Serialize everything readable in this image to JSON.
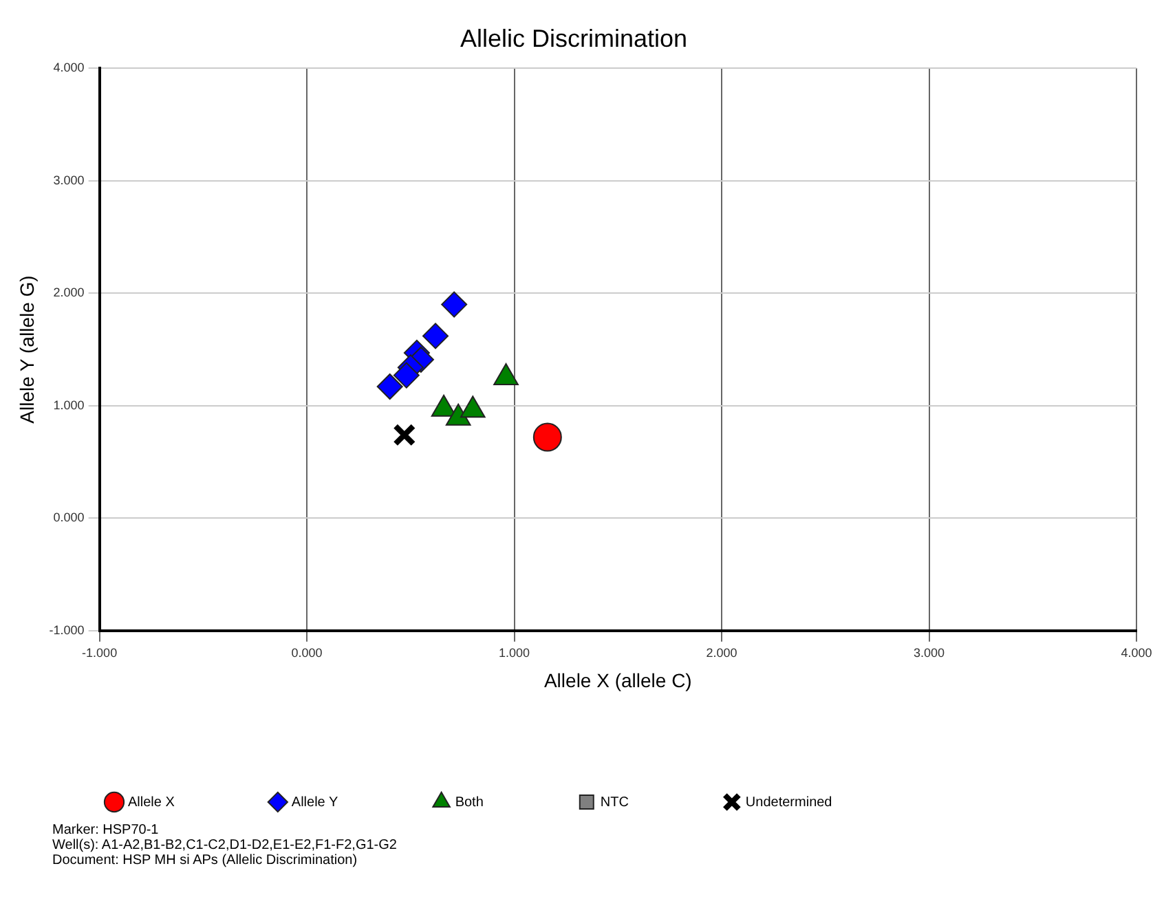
{
  "chart_data": {
    "type": "scatter",
    "title": "Allelic Discrimination",
    "xlabel": "Allele X (allele C)",
    "ylabel": "Allele Y (allele G)",
    "xlim": [
      -1,
      4
    ],
    "ylim": [
      -1,
      4
    ],
    "xticks": [
      {
        "value": -1,
        "label": "-1.000"
      },
      {
        "value": 0,
        "label": "0.000"
      },
      {
        "value": 1,
        "label": "1.000"
      },
      {
        "value": 2,
        "label": "2.000"
      },
      {
        "value": 3,
        "label": "3.000"
      },
      {
        "value": 4,
        "label": "4.000"
      }
    ],
    "yticks": [
      {
        "value": -1,
        "label": "-1.000"
      },
      {
        "value": 0,
        "label": "0.000"
      },
      {
        "value": 1,
        "label": "1.000"
      },
      {
        "value": 2,
        "label": "2.000"
      },
      {
        "value": 3,
        "label": "3.000"
      },
      {
        "value": 4,
        "label": "4.000"
      }
    ],
    "grid": true,
    "legend": "bottom",
    "series": [
      {
        "name": "Allele X",
        "color": "#ff0000",
        "marker": "circle",
        "x": [
          1.16
        ],
        "values": [
          0.72
        ]
      },
      {
        "name": "Allele Y",
        "color": "#0000ff",
        "marker": "diamond",
        "x": [
          0.71,
          0.62,
          0.53,
          0.55,
          0.5,
          0.48,
          0.4
        ],
        "values": [
          1.9,
          1.62,
          1.47,
          1.41,
          1.34,
          1.27,
          1.17
        ]
      },
      {
        "name": "Both",
        "color": "#008000",
        "marker": "triangle",
        "x": [
          0.96,
          0.66,
          0.73,
          0.8
        ],
        "values": [
          1.25,
          0.97,
          0.89,
          0.96
        ]
      },
      {
        "name": "NTC",
        "color": "#808080",
        "marker": "square"
      },
      {
        "name": "Undetermined",
        "color": "#000000",
        "marker": "cross",
        "x": [
          0.47
        ],
        "values": [
          0.74
        ]
      }
    ],
    "annotations": [
      "Marker: HSP70-1",
      "Well(s): A1-A2,B1-B2,C1-C2,D1-D2,E1-E2,F1-F2,G1-G2",
      "Document: HSP MH si APs (Allelic Discrimination)"
    ]
  }
}
